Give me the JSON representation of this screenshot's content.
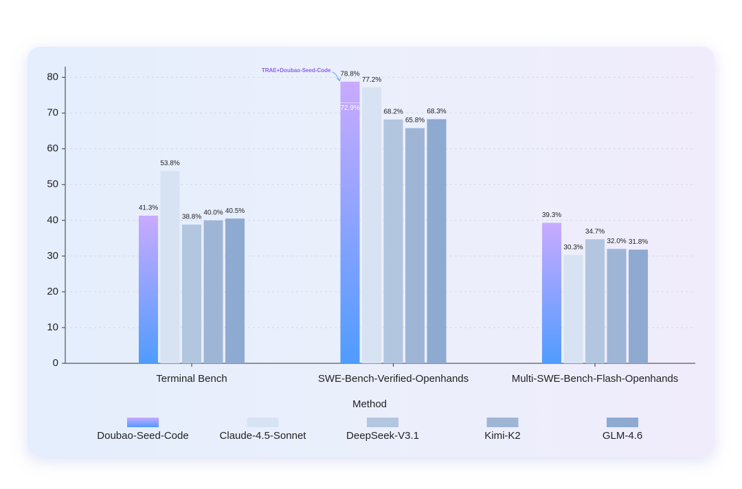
{
  "chart_data": {
    "type": "bar",
    "categories": [
      "Terminal Bench",
      "SWE-Bench-Verified-Openhands",
      "Multi-SWE-Bench-Flash-Openhands"
    ],
    "series": [
      {
        "name": "Doubao-Seed-Code",
        "color": [
          "#c9aaff",
          "#4f9cff"
        ],
        "values": [
          41.3,
          78.8,
          39.3
        ],
        "value_labels": [
          "41.3%",
          "78.8%",
          "39.3%"
        ]
      },
      {
        "name": "Claude-4.5-Sonnet",
        "color": "#d7e3f3",
        "values": [
          53.8,
          77.2,
          30.3
        ],
        "value_labels": [
          "53.8%",
          "77.2%",
          "30.3%"
        ]
      },
      {
        "name": "DeepSeek-V3.1",
        "color": "#b2c6e0",
        "values": [
          38.8,
          68.2,
          34.7
        ],
        "value_labels": [
          "38.8%",
          "68.2%",
          "34.7%"
        ]
      },
      {
        "name": "Kimi-K2",
        "color": "#9fb5d6",
        "values": [
          40.0,
          65.8,
          32.0
        ],
        "value_labels": [
          "40.0%",
          "65.8%",
          "32.0%"
        ]
      },
      {
        "name": "GLM-4.6",
        "color": "#8eaad1",
        "values": [
          40.5,
          68.3,
          31.8
        ],
        "value_labels": [
          "40.5%",
          "68.3%",
          "31.8%"
        ]
      }
    ],
    "annotation": {
      "text": "TRAE+Doubao-Seed-Code",
      "series": "Doubao-Seed-Code",
      "category": "SWE-Bench-Verified-Openhands",
      "base_value": 72.9,
      "base_label": "72.9%"
    },
    "xlabel": "Method",
    "ylim": [
      0,
      83
    ],
    "yticks": [
      0,
      10,
      20,
      30,
      40,
      50,
      60,
      70,
      80
    ],
    "grid": true
  }
}
